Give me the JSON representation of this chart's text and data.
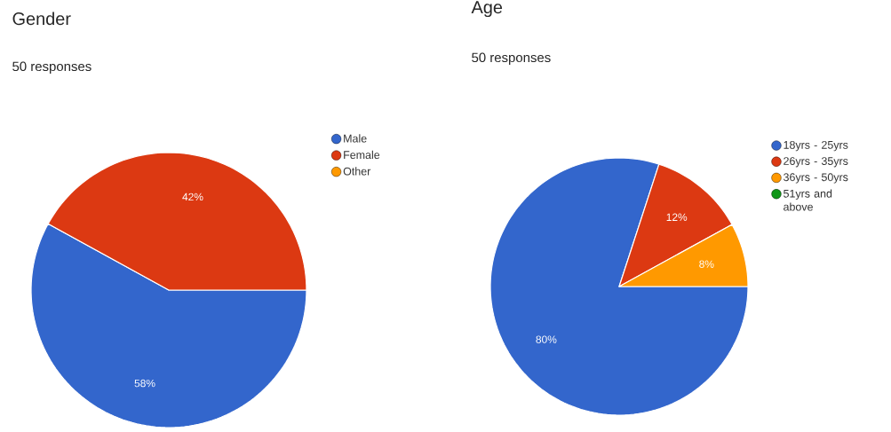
{
  "chart_data": [
    {
      "type": "pie",
      "title": "Gender",
      "subtitle": "50 responses",
      "categories": [
        "Male",
        "Female",
        "Other"
      ],
      "values": [
        58,
        42,
        0
      ],
      "colors": [
        "#3366cc",
        "#dc3912",
        "#ff9900"
      ],
      "value_labels": [
        "58%",
        "42%",
        null
      ],
      "legend": "right"
    },
    {
      "type": "pie",
      "title": "Age",
      "subtitle": "50 responses",
      "categories": [
        "18yrs - 25yrs",
        "26yrs - 35yrs",
        "36yrs - 50yrs",
        "51yrs and above"
      ],
      "values": [
        80,
        12,
        8,
        0
      ],
      "colors": [
        "#3366cc",
        "#dc3912",
        "#ff9900",
        "#109618"
      ],
      "value_labels": [
        "80%",
        "12%",
        "8%",
        null
      ],
      "legend": "right"
    }
  ]
}
